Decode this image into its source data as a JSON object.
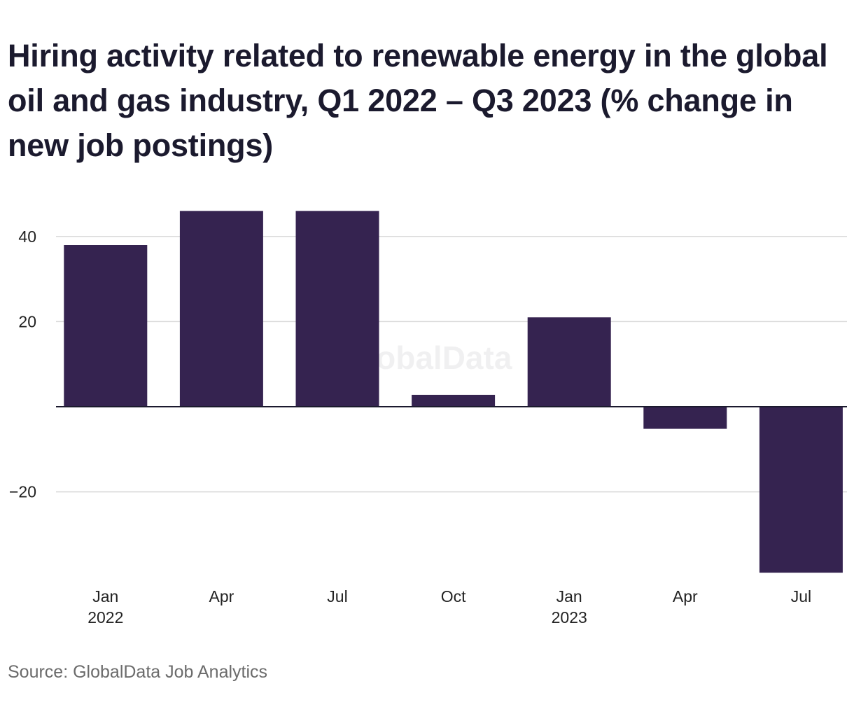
{
  "title": "Hiring activity related to renewable energy in the global oil and gas industry, Q1 2022 – Q3 2023 (% change in new job postings)",
  "source": "Source: GlobalData Job Analytics",
  "watermark": "GlobalData",
  "colors": {
    "bar": "#352350",
    "grid": "#d9d9d9",
    "zero_line": "#1b1a2e",
    "title": "#1b1a2e",
    "source": "#6b6b6b"
  },
  "chart_data": {
    "type": "bar",
    "categories": [
      "Jan 2022",
      "Apr 2022",
      "Jul 2022",
      "Oct 2022",
      "Jan 2023",
      "Apr 2023",
      "Jul 2023"
    ],
    "x_tick_labels": [
      {
        "line1": "Jan",
        "line2": "2022"
      },
      {
        "line1": "Apr",
        "line2": ""
      },
      {
        "line1": "Jul",
        "line2": ""
      },
      {
        "line1": "Oct",
        "line2": ""
      },
      {
        "line1": "Jan",
        "line2": "2023"
      },
      {
        "line1": "Apr",
        "line2": ""
      },
      {
        "line1": "Jul",
        "line2": ""
      }
    ],
    "values": [
      38,
      46,
      46,
      2.8,
      21,
      -5.2,
      -39
    ],
    "y_ticks": [
      40,
      20,
      0,
      -20
    ],
    "y_tick_labels": [
      "40",
      "20",
      "",
      "−20"
    ],
    "ylim": [
      -39,
      46
    ],
    "grid": true,
    "legend": "none"
  }
}
